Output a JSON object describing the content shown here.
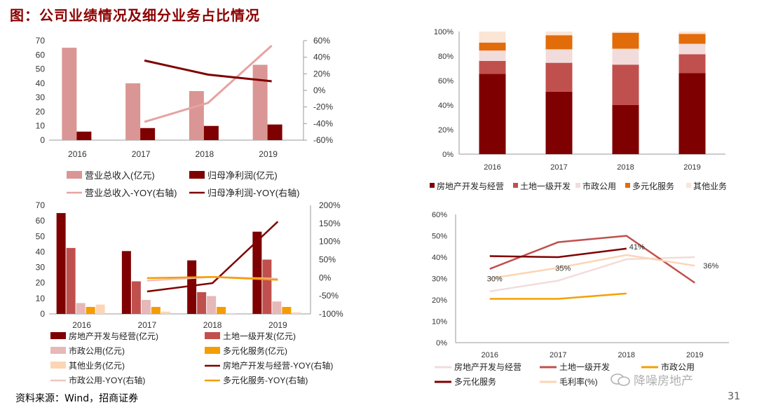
{
  "page": {
    "title": "图：公司业绩情况及细分业务占比情况",
    "source": "资料来源：Wind，招商证券",
    "page_number": "31",
    "watermark": "降噪房地产"
  },
  "chart_data": [
    {
      "id": "c1",
      "type": "bar",
      "categories": [
        "2016",
        "2017",
        "2018",
        "2019"
      ],
      "ylim": [
        0,
        70
      ],
      "yticks": [
        "0",
        "10",
        "20",
        "30",
        "40",
        "50",
        "60",
        "70"
      ],
      "y2lim": [
        -60,
        60
      ],
      "y2ticks": [
        "-60%",
        "-40%",
        "-20%",
        "0%",
        "20%",
        "40%",
        "60%"
      ],
      "series": [
        {
          "name": "营业总收入(亿元)",
          "kind": "bar",
          "color": "#d99694",
          "values": [
            65,
            40,
            34.5,
            53
          ]
        },
        {
          "name": "归母净利润(亿元)",
          "kind": "bar",
          "color": "#7f0000",
          "values": [
            6,
            8.5,
            10,
            11
          ]
        },
        {
          "name": "营业总收入-YOY(右轴)",
          "kind": "line",
          "axis": "right",
          "color": "#e6a3a1",
          "values": [
            null,
            -38,
            -15,
            54
          ]
        },
        {
          "name": "归母净利润-YOY(右轴)",
          "kind": "line",
          "axis": "right",
          "color": "#7f0000",
          "values": [
            null,
            36,
            19,
            11
          ]
        }
      ]
    },
    {
      "id": "c2",
      "type": "bar",
      "stacked": true,
      "categories": [
        "2016",
        "2017",
        "2018",
        "2019"
      ],
      "ylim": [
        0,
        100
      ],
      "yticks": [
        "0%",
        "20%",
        "40%",
        "60%",
        "80%",
        "100%"
      ],
      "series": [
        {
          "name": "房地产开发与经营",
          "color": "#7f0000",
          "values": [
            65.5,
            51,
            40,
            66
          ]
        },
        {
          "name": "土地一级开发",
          "color": "#c0504d",
          "values": [
            10.5,
            23.5,
            33,
            15.5
          ]
        },
        {
          "name": "市政公用",
          "color": "#f2dcdb",
          "values": [
            8.5,
            11,
            13,
            8.5
          ]
        },
        {
          "name": "多元化服务",
          "color": "#e36c0a",
          "values": [
            6.5,
            11.5,
            13,
            8
          ]
        },
        {
          "name": "其他业务",
          "color": "#fbe5d6",
          "values": [
            9,
            3,
            1,
            2
          ]
        }
      ]
    },
    {
      "id": "c3",
      "type": "bar",
      "categories": [
        "2016",
        "2017",
        "2018",
        "2019"
      ],
      "ylim": [
        0,
        70
      ],
      "yticks": [
        "0",
        "10",
        "20",
        "30",
        "40",
        "50",
        "60",
        "70"
      ],
      "y2lim": [
        -100,
        200
      ],
      "y2ticks": [
        "-100%",
        "-50%",
        "0%",
        "50%",
        "100%",
        "150%",
        "200%"
      ],
      "series": [
        {
          "name": "房地产开发与经营(亿元)",
          "kind": "bar",
          "color": "#7f0000",
          "values": [
            65,
            40.5,
            34.5,
            53
          ]
        },
        {
          "name": "土地一级开发(亿元)",
          "kind": "bar",
          "color": "#c0504d",
          "values": [
            42.5,
            21,
            14,
            35
          ]
        },
        {
          "name": "市政公用(亿元)",
          "kind": "bar",
          "color": "#e6b8b7",
          "values": [
            7,
            9,
            11.5,
            8
          ]
        },
        {
          "name": "多元化服务(亿元)",
          "kind": "bar",
          "color": "#f59d00",
          "values": [
            4.5,
            4.5,
            4.5,
            4.5
          ]
        },
        {
          "name": "其他业务(亿元)",
          "kind": "bar",
          "color": "#fcd5b4",
          "values": [
            6,
            1.5,
            0.5,
            1
          ]
        },
        {
          "name": "房地产开发与经营-YOY(右轴)",
          "kind": "line",
          "axis": "right",
          "color": "#7f0000",
          "values": [
            null,
            -38,
            -15,
            155
          ]
        },
        {
          "name": "市政公用-YOY(右轴)",
          "kind": "line",
          "axis": "right",
          "color": "#f2c2c0",
          "values": [
            null,
            -8,
            2,
            -3
          ]
        },
        {
          "name": "多元化服务-YOY(右轴)",
          "kind": "line",
          "axis": "right",
          "color": "#f59d00",
          "values": [
            null,
            -1,
            2,
            -6
          ]
        }
      ]
    },
    {
      "id": "c4",
      "type": "line",
      "categories": [
        "2016",
        "2017",
        "2018",
        "2019"
      ],
      "ylim": [
        0,
        60
      ],
      "yticks": [
        "0%",
        "10%",
        "20%",
        "30%",
        "40%",
        "50%",
        "60%"
      ],
      "series": [
        {
          "name": "房地产开发与经营",
          "color": "#f2dcdb",
          "values": [
            24,
            29,
            39,
            40
          ]
        },
        {
          "name": "土地一级开发",
          "color": "#c0504d",
          "values": [
            34.5,
            47,
            50,
            28
          ]
        },
        {
          "name": "市政公用",
          "color": "#f5a000",
          "values": [
            20.5,
            20.5,
            23,
            null
          ]
        },
        {
          "name": "多元化服务",
          "color": "#7f0000",
          "values": [
            40.5,
            40,
            44,
            null
          ]
        },
        {
          "name": "毛利率(%)",
          "color": "#fcd5b4",
          "values": [
            30,
            35,
            41,
            36
          ]
        }
      ],
      "data_labels": [
        {
          "series": 4,
          "index": 0,
          "text": "30%"
        },
        {
          "series": 4,
          "index": 1,
          "text": "35%"
        },
        {
          "series": 4,
          "index": 2,
          "text": "41%"
        },
        {
          "series": 4,
          "index": 3,
          "text": "36%"
        }
      ]
    }
  ]
}
